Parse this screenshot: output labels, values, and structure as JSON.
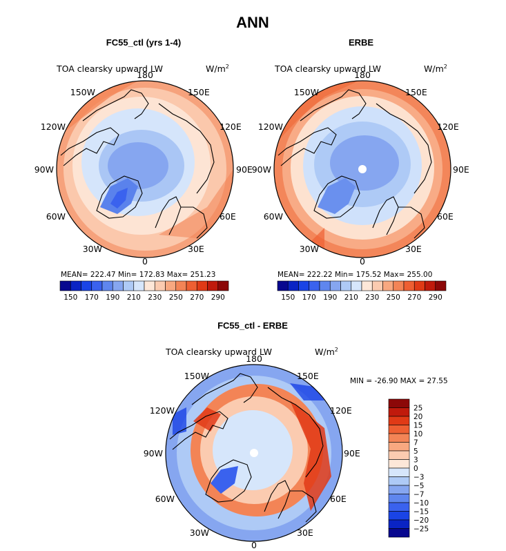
{
  "page_title": "ANN",
  "colors": {
    "abs_scale": [
      "#08088f",
      "#0a24c4",
      "#1a44e6",
      "#3a62ee",
      "#5f86ee",
      "#86a6f0",
      "#aecaf6",
      "#d6e6fb",
      "#fde7d8",
      "#fbcbb0",
      "#f8a880",
      "#f38456",
      "#ee5f32",
      "#e03a16",
      "#c01a0c",
      "#8c0808"
    ],
    "diff_scale": [
      "#08088f",
      "#0a24c4",
      "#1a44e6",
      "#3a62ee",
      "#5f86ee",
      "#86a6f0",
      "#aecaf6",
      "#d6e6fb",
      "#fde7d8",
      "#fbcbb0",
      "#f8a880",
      "#f38456",
      "#ee5f32",
      "#e03a16",
      "#c01a0c",
      "#8c0808"
    ],
    "land_outline": "#000000"
  },
  "panels": [
    {
      "title": "FC55_ctl (yrs 1-4)",
      "field_label": "TOA clearsky upward LW",
      "units": "W/m",
      "units_sup": "2",
      "lon_labels": {
        "top": "180",
        "bottom": "0",
        "left": "90W",
        "right": "90E",
        "upper_left": "150W",
        "upper_left2": "120W",
        "upper_right": "150E",
        "upper_right2": "120E",
        "lower_left": "60W",
        "lower_left2": "30W",
        "lower_right": "60E",
        "lower_right2": "30E"
      },
      "stats": "MEAN= 222.47   Min= 172.83   Max= 251.23",
      "colorbar_ticks": [
        "150",
        "170",
        "190",
        "210",
        "230",
        "250",
        "270",
        "290"
      ]
    },
    {
      "title": "ERBE",
      "field_label": "TOA clearsky upward LW",
      "units": "W/m",
      "units_sup": "2",
      "lon_labels": {
        "top": "180",
        "bottom": "0",
        "left": "90W",
        "right": "90E",
        "upper_left": "150W",
        "upper_left2": "120W",
        "upper_right": "150E",
        "upper_right2": "120E",
        "lower_left": "60W",
        "lower_left2": "30W",
        "lower_right": "60E",
        "lower_right2": "30E"
      },
      "stats": "MEAN= 222.22   Min= 175.52   Max= 255.00",
      "colorbar_ticks": [
        "150",
        "170",
        "190",
        "210",
        "230",
        "250",
        "270",
        "290"
      ]
    },
    {
      "title": "FC55_ctl - ERBE",
      "field_label": "TOA clearsky upward LW",
      "units": "W/m",
      "units_sup": "2",
      "lon_labels": {
        "top": "180",
        "bottom": "0",
        "left": "90W",
        "right": "90E",
        "upper_left": "150W",
        "upper_left2": "120W",
        "upper_right": "150E",
        "upper_right2": "120E",
        "lower_left": "60W",
        "lower_left2": "30W",
        "lower_right": "60E",
        "lower_right2": "30E"
      },
      "stats": "MIN = -26.90 MAX =  27.55",
      "colorbar_ticks": [
        "25",
        "20",
        "15",
        "10",
        "7",
        "5",
        "3",
        "0",
        "−3",
        "−5",
        "−7",
        "−10",
        "−15",
        "−20",
        "−25"
      ]
    }
  ],
  "chart_data": [
    {
      "type": "heatmap",
      "projection": "north polar stereographic",
      "title": "FC55_ctl (yrs 1-4)",
      "field": "TOA clearsky upward LW",
      "units": "W/m2",
      "mean": 222.47,
      "min": 172.83,
      "max": 251.23,
      "colorbar_levels": [
        150,
        160,
        170,
        180,
        190,
        200,
        210,
        220,
        230,
        240,
        250,
        260,
        270,
        280,
        290
      ],
      "colorbar_ticks": [
        150,
        170,
        190,
        210,
        230,
        250,
        270,
        290
      ],
      "lat_bands": [
        {
          "lat_range": [
            75,
            90
          ],
          "approx_value": 185
        },
        {
          "lat_range": [
            60,
            75
          ],
          "approx_value": 205
        },
        {
          "lat_range": [
            45,
            60
          ],
          "approx_value": 232
        },
        {
          "lat_range": [
            30,
            45
          ],
          "approx_value": 250
        }
      ]
    },
    {
      "type": "heatmap",
      "projection": "north polar stereographic",
      "title": "ERBE",
      "field": "TOA clearsky upward LW",
      "units": "W/m2",
      "mean": 222.22,
      "min": 175.52,
      "max": 255.0,
      "colorbar_levels": [
        150,
        160,
        170,
        180,
        190,
        200,
        210,
        220,
        230,
        240,
        250,
        260,
        270,
        280,
        290
      ],
      "colorbar_ticks": [
        150,
        170,
        190,
        210,
        230,
        250,
        270,
        290
      ],
      "lat_bands": [
        {
          "lat_range": [
            75,
            90
          ],
          "approx_value": 190
        },
        {
          "lat_range": [
            60,
            75
          ],
          "approx_value": 205
        },
        {
          "lat_range": [
            45,
            60
          ],
          "approx_value": 235
        },
        {
          "lat_range": [
            30,
            45
          ],
          "approx_value": 255
        }
      ]
    },
    {
      "type": "heatmap",
      "projection": "north polar stereographic",
      "title": "FC55_ctl - ERBE",
      "field": "TOA clearsky upward LW",
      "units": "W/m2",
      "min": -26.9,
      "max": 27.55,
      "colorbar_levels": [
        -25,
        -20,
        -15,
        -10,
        -7,
        -5,
        -3,
        0,
        3,
        5,
        7,
        10,
        15,
        20,
        25
      ],
      "lat_bands": [
        {
          "lat_range": [
            75,
            90
          ],
          "approx_value": -3
        },
        {
          "lat_range": [
            60,
            75
          ],
          "approx_value": 7
        },
        {
          "lat_range": [
            45,
            60
          ],
          "approx_value": -5
        },
        {
          "lat_range": [
            30,
            45
          ],
          "approx_value": -7
        }
      ]
    }
  ]
}
